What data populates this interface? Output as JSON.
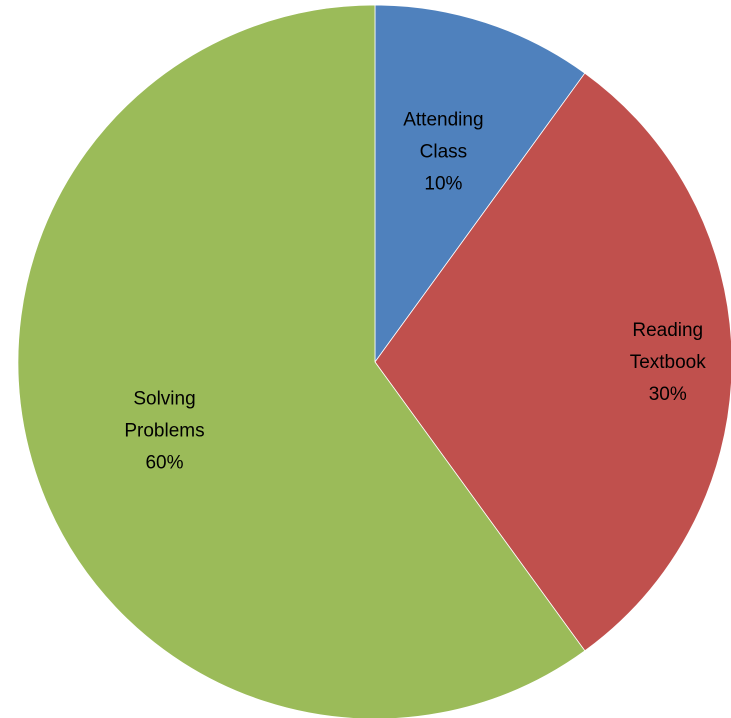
{
  "chart_data": {
    "type": "pie",
    "categories": [
      "Attending Class",
      "Reading Textbook",
      "Solving Problems"
    ],
    "label_lines": [
      [
        "Attending",
        "Class",
        "10%"
      ],
      [
        "Reading",
        "Textbook",
        "30%"
      ],
      [
        "Solving",
        "Problems",
        "60%"
      ]
    ],
    "values": [
      10,
      30,
      60
    ],
    "percent_labels": [
      "10%",
      "30%",
      "60%"
    ],
    "colors": [
      "#4F81BD",
      "#C0504D",
      "#9BBB59"
    ],
    "start_angle_deg": 0,
    "direction": "clockwise",
    "legend": "none",
    "title": ""
  }
}
